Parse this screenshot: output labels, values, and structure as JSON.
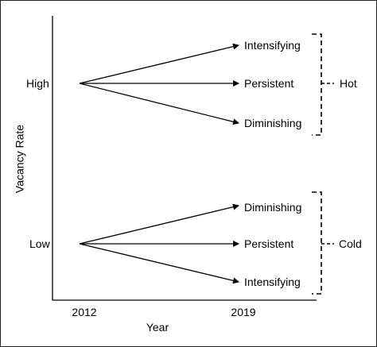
{
  "axes": {
    "y_label": "Vacancy Rate",
    "x_label": "Year",
    "x_ticks": [
      "2012",
      "2019"
    ],
    "y_levels": [
      "High",
      "Low"
    ]
  },
  "groups": [
    {
      "level": "High",
      "outcomes": [
        "Intensifying",
        "Persistent",
        "Diminishing"
      ],
      "bracket_label": "Hot"
    },
    {
      "level": "Low",
      "outcomes": [
        "Diminishing",
        "Persistent",
        "Intensifying"
      ],
      "bracket_label": "Cold"
    }
  ]
}
